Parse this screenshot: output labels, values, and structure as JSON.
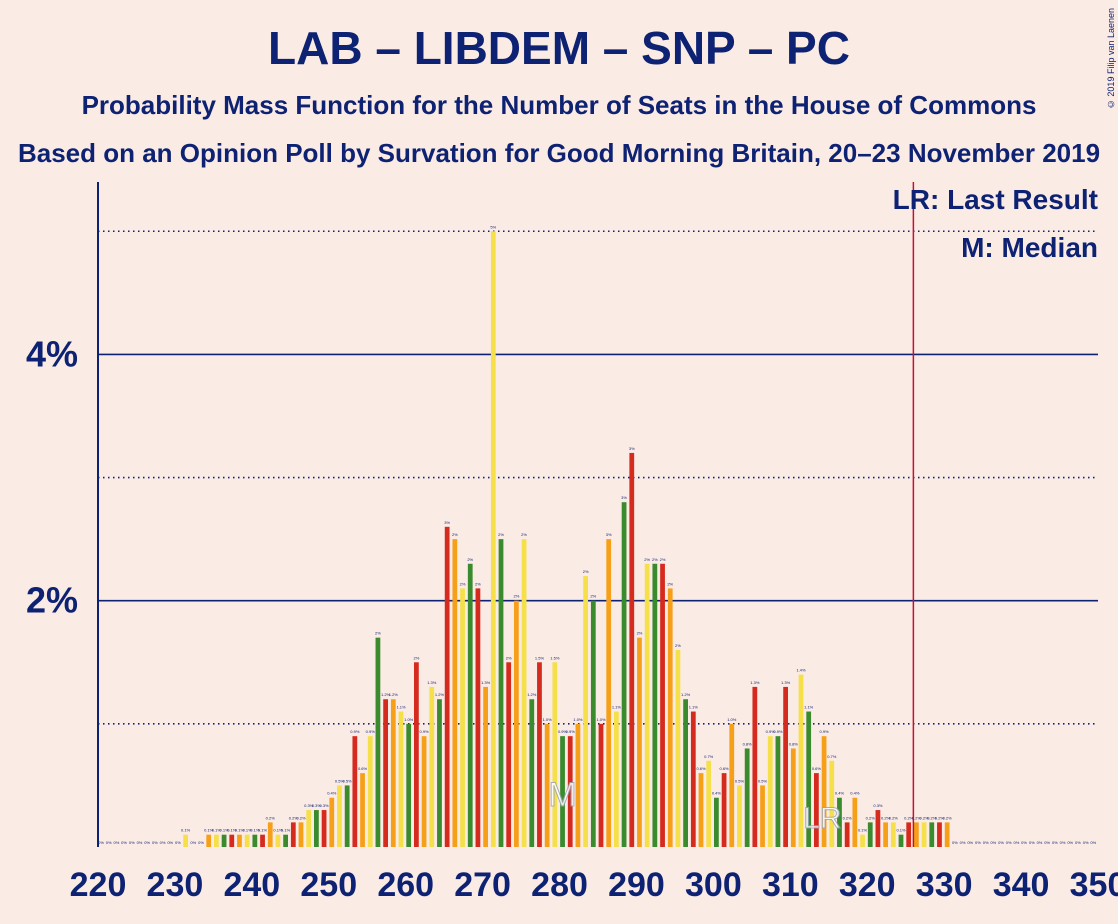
{
  "title": "LAB – LIBDEM – SNP – PC",
  "subtitle1": "Probability Mass Function for the Number of Seats in the House of Commons",
  "subtitle2": "Based on an Opinion Poll by Survation for Good Morning Britain, 20–23 November 2019",
  "copyright": "© 2019 Filip van Laenen",
  "legend": {
    "last_result": "LR: Last Result",
    "median": "M: Median",
    "lr_marker": "LR",
    "median_marker": "M"
  },
  "colors": {
    "background": "#FBEBE5",
    "text": "#0d2272",
    "series": [
      "#3A8A2E",
      "#D52B1E",
      "#F6A01A",
      "#F5E04A"
    ],
    "last_result_line": "#C8102E"
  },
  "chart_data": {
    "type": "bar",
    "x": [
      220,
      221,
      222,
      223,
      224,
      225,
      226,
      227,
      228,
      229,
      230,
      231,
      232,
      233,
      234,
      235,
      236,
      237,
      238,
      239,
      240,
      241,
      242,
      243,
      244,
      245,
      246,
      247,
      248,
      249,
      250,
      251,
      252,
      253,
      254,
      255,
      256,
      257,
      258,
      259,
      260,
      261,
      262,
      263,
      264,
      265,
      266,
      267,
      268,
      269,
      270,
      271,
      272,
      273,
      274,
      275,
      276,
      277,
      278,
      279,
      280,
      281,
      282,
      283,
      284,
      285,
      286,
      287,
      288,
      289,
      290,
      291,
      292,
      293,
      294,
      295,
      296,
      297,
      298,
      299,
      300,
      301,
      302,
      303,
      304,
      305,
      306,
      307,
      308,
      309,
      310,
      311,
      312,
      313,
      314,
      315,
      316,
      317,
      318,
      319,
      320,
      321,
      322,
      323,
      324,
      325,
      326,
      327,
      328,
      329,
      330,
      331,
      332,
      333,
      334,
      335,
      336,
      337,
      338,
      339,
      340,
      341,
      342,
      343,
      344,
      345,
      346,
      347,
      348,
      349
    ],
    "values": [
      0.0,
      0.0,
      0.0,
      0.0,
      0.0,
      0.0,
      0.0,
      0.0,
      0.0,
      0.0,
      0.0,
      0.1,
      0.0,
      0.0,
      0.1,
      0.1,
      0.1,
      0.1,
      0.1,
      0.1,
      0.1,
      0.1,
      0.2,
      0.1,
      0.1,
      0.2,
      0.2,
      0.3,
      0.3,
      0.3,
      0.4,
      0.5,
      0.5,
      0.9,
      0.6,
      0.9,
      1.7,
      1.2,
      1.2,
      1.1,
      1.0,
      1.5,
      0.9,
      1.3,
      1.2,
      2.6,
      2.5,
      2.1,
      2.3,
      2.1,
      1.3,
      5.0,
      2.5,
      1.5,
      2.0,
      2.5,
      1.2,
      1.5,
      1.0,
      1.5,
      0.9,
      0.9,
      1.0,
      2.2,
      2.0,
      1.0,
      2.5,
      1.1,
      2.8,
      3.2,
      1.7,
      2.3,
      2.3,
      2.3,
      2.1,
      1.6,
      1.2,
      1.1,
      0.6,
      0.7,
      0.4,
      0.6,
      1.0,
      0.5,
      0.8,
      1.3,
      0.5,
      0.9,
      0.9,
      1.3,
      0.8,
      1.4,
      1.1,
      0.6,
      0.9,
      0.7,
      0.4,
      0.2,
      0.4,
      0.1,
      0.2,
      0.3,
      0.2,
      0.2,
      0.1,
      0.2,
      0.2,
      0.2,
      0.2,
      0.2,
      0.2,
      0.0,
      0.0,
      0.0,
      0.0,
      0.0,
      0.0,
      0.0,
      0.0,
      0.0,
      0.0,
      0.0,
      0.0,
      0.0,
      0.0,
      0.0,
      0.0,
      0.0,
      0.0,
      0.0
    ],
    "value_labels": [
      "0%",
      "0%",
      "0%",
      "0%",
      "0%",
      "0%",
      "0%",
      "0%",
      "0%",
      "0%",
      "0%",
      "0.1%",
      "0%",
      "0%",
      "0.1%",
      "0.1%",
      "0.1%",
      "0.1%",
      "0.1%",
      "0.1%",
      "0.1%",
      "0.1%",
      "0.2%",
      "0.1%",
      "0.1%",
      "0.2%",
      "0.2%",
      "0.3%",
      "0.3%",
      "0.3%",
      "0.4%",
      "0.5%",
      "0.5%",
      "0.9%",
      "0.6%",
      "0.9%",
      "2%",
      "1.2%",
      "1.2%",
      "1.1%",
      "1.0%",
      "2%",
      "0.9%",
      "1.3%",
      "1.2%",
      "3%",
      "2%",
      "2%",
      "2%",
      "2%",
      "1.3%",
      "5%",
      "2%",
      "2%",
      "2%",
      "2%",
      "1.2%",
      "1.5%",
      "1.0%",
      "1.5%",
      "0.9%",
      "0.9%",
      "1.0%",
      "2%",
      "2%",
      "1.0%",
      "3%",
      "1.1%",
      "3%",
      "3%",
      "2%",
      "2%",
      "2%",
      "2%",
      "2%",
      "2%",
      "1.2%",
      "1.1%",
      "0.6%",
      "0.7%",
      "0.4%",
      "0.6%",
      "1.0%",
      "0.5%",
      "0.8%",
      "1.3%",
      "0.5%",
      "0.9%",
      "0.9%",
      "1.3%",
      "0.8%",
      "1.4%",
      "1.1%",
      "0.6%",
      "0.9%",
      "0.7%",
      "0.4%",
      "0.2%",
      "0.4%",
      "0.1%",
      "0.2%",
      "0.3%",
      "0.2%",
      "0.2%",
      "0.1%",
      "0.2%",
      "0.2%",
      "0.2%",
      "0.2%",
      "0.2%",
      "0.2%",
      "0%",
      "0%",
      "0%",
      "0%",
      "0%",
      "0%",
      "0%",
      "0%",
      "0%",
      "0%",
      "0%",
      "0%",
      "0%",
      "0%",
      "0%",
      "0%",
      "0%",
      "0%",
      "0%"
    ],
    "x_ticks": [
      "220",
      "230",
      "240",
      "250",
      "260",
      "270",
      "280",
      "290",
      "300",
      "310",
      "320",
      "330",
      "340",
      "350"
    ],
    "y_ticks": [
      {
        "value": 2,
        "label": "2%"
      },
      {
        "value": 4,
        "label": "4%"
      }
    ],
    "xlim": [
      220,
      350
    ],
    "ylim": [
      0,
      5.4
    ],
    "last_result": 326,
    "median": 280,
    "grid": true
  }
}
